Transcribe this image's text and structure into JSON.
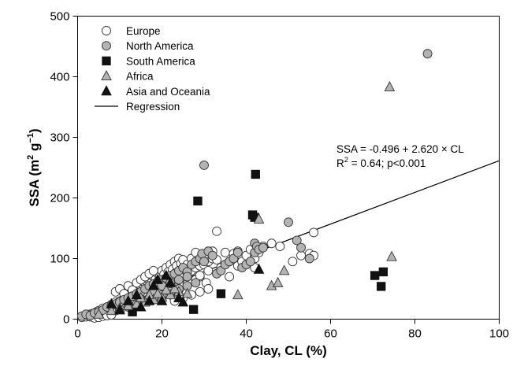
{
  "chart_data": {
    "type": "scatter",
    "xlabel": "Clay, CL (%)",
    "ylabel_main": "SSA (m",
    "ylabel_sup1": "2",
    "ylabel_mid": " g",
    "ylabel_sup2": "−1",
    "ylabel_end": ")",
    "xlim": [
      0,
      100
    ],
    "ylim": [
      0,
      500
    ],
    "xticks": [
      0,
      20,
      40,
      60,
      80,
      100
    ],
    "yticks": [
      0,
      100,
      200,
      300,
      400,
      500
    ],
    "xtick_labels": [
      "0",
      "20",
      "40",
      "60",
      "80",
      "100"
    ],
    "ytick_labels": [
      "0",
      "100",
      "200",
      "300",
      "400",
      "500"
    ],
    "grid": false,
    "legend_position": "top-left",
    "annotation": {
      "equation": "SSA = -0.496 + 2.620 × CL",
      "r2_prefix": "R",
      "r2_sup": "2",
      "r2_suffix": " = 0.64; p<0.001"
    },
    "regression": {
      "name": "Regression",
      "intercept": -0.496,
      "slope": 2.62,
      "x_range": [
        0,
        100
      ],
      "color": "#000000"
    },
    "series": [
      {
        "name": "Europe",
        "marker": "circle",
        "fill": "#ffffff",
        "stroke": "#333333",
        "points": [
          [
            1,
            3
          ],
          [
            1.5,
            5
          ],
          [
            2,
            4
          ],
          [
            2.5,
            6
          ],
          [
            3,
            8
          ],
          [
            3,
            4
          ],
          [
            3.5,
            9
          ],
          [
            4,
            10
          ],
          [
            4,
            6
          ],
          [
            4.5,
            12
          ],
          [
            5,
            8
          ],
          [
            5,
            14
          ],
          [
            5.5,
            11
          ],
          [
            6,
            12
          ],
          [
            6,
            18
          ],
          [
            6.5,
            15
          ],
          [
            7,
            14
          ],
          [
            7,
            20
          ],
          [
            7.5,
            18
          ],
          [
            8,
            16
          ],
          [
            8,
            24
          ],
          [
            8.5,
            22
          ],
          [
            9,
            20
          ],
          [
            9,
            28
          ],
          [
            9.5,
            25
          ],
          [
            10,
            22
          ],
          [
            10,
            30
          ],
          [
            10.5,
            28
          ],
          [
            11,
            26
          ],
          [
            11,
            35
          ],
          [
            11.5,
            32
          ],
          [
            12,
            30
          ],
          [
            12,
            40
          ],
          [
            12.5,
            36
          ],
          [
            13,
            34
          ],
          [
            13,
            45
          ],
          [
            13.5,
            40
          ],
          [
            14,
            38
          ],
          [
            14,
            50
          ],
          [
            14.5,
            45
          ],
          [
            15,
            42
          ],
          [
            15,
            55
          ],
          [
            15.5,
            50
          ],
          [
            16,
            45
          ],
          [
            16,
            60
          ],
          [
            16.5,
            55
          ],
          [
            17,
            48
          ],
          [
            17,
            65
          ],
          [
            17.5,
            60
          ],
          [
            18,
            52
          ],
          [
            18,
            70
          ],
          [
            18.5,
            66
          ],
          [
            19,
            55
          ],
          [
            19,
            75
          ],
          [
            19.5,
            70
          ],
          [
            20,
            58
          ],
          [
            20,
            80
          ],
          [
            20.5,
            74
          ],
          [
            21,
            60
          ],
          [
            21,
            85
          ],
          [
            21.5,
            78
          ],
          [
            22,
            62
          ],
          [
            22,
            90
          ],
          [
            22.5,
            82
          ],
          [
            23,
            65
          ],
          [
            23,
            95
          ],
          [
            23.5,
            88
          ],
          [
            24,
            68
          ],
          [
            24,
            100
          ],
          [
            24.5,
            92
          ],
          [
            25,
            70
          ],
          [
            25,
            98
          ],
          [
            26,
            75
          ],
          [
            26,
            90
          ],
          [
            27,
            80
          ],
          [
            27,
            100
          ],
          [
            28,
            85
          ],
          [
            28,
            110
          ],
          [
            28.5,
            95
          ],
          [
            29,
            88
          ],
          [
            29,
            70
          ],
          [
            30,
            90
          ],
          [
            30,
            105
          ],
          [
            30.5,
            60
          ],
          [
            31,
            95
          ],
          [
            31,
            80
          ],
          [
            32,
            100
          ],
          [
            32,
            112
          ],
          [
            33,
            145
          ],
          [
            33,
            98
          ],
          [
            34,
            85
          ],
          [
            35,
            90
          ],
          [
            35,
            110
          ],
          [
            36,
            70
          ],
          [
            36,
            95
          ],
          [
            37,
            100
          ],
          [
            37,
            108
          ],
          [
            38,
            88
          ],
          [
            38,
            112
          ],
          [
            39,
            95
          ],
          [
            40,
            105
          ],
          [
            40,
            90
          ],
          [
            41,
            115
          ],
          [
            42,
            100
          ],
          [
            42,
            85
          ],
          [
            43,
            110
          ],
          [
            44,
            120
          ],
          [
            46,
            125
          ],
          [
            48,
            120
          ],
          [
            51,
            95
          ],
          [
            53,
            105
          ],
          [
            55,
            108
          ],
          [
            56,
            143
          ],
          [
            56,
            105
          ],
          [
            9,
            45
          ],
          [
            10,
            50
          ],
          [
            11,
            42
          ],
          [
            12,
            55
          ],
          [
            13,
            48
          ],
          [
            14,
            60
          ],
          [
            15,
            65
          ],
          [
            16,
            70
          ],
          [
            17,
            75
          ],
          [
            18,
            80
          ],
          [
            20,
            50
          ],
          [
            21,
            45
          ],
          [
            22,
            40
          ],
          [
            23,
            52
          ],
          [
            24,
            48
          ],
          [
            25,
            55
          ],
          [
            26,
            58
          ],
          [
            27,
            62
          ],
          [
            28,
            65
          ],
          [
            29,
            72
          ],
          [
            6,
            8
          ],
          [
            7,
            10
          ],
          [
            8,
            12
          ],
          [
            9,
            14
          ],
          [
            10,
            16
          ],
          [
            4,
            2
          ],
          [
            5,
            3
          ],
          [
            6,
            5
          ],
          [
            7,
            6
          ],
          [
            8,
            7
          ],
          [
            13,
            25
          ],
          [
            15,
            30
          ],
          [
            17,
            35
          ],
          [
            19,
            38
          ],
          [
            21,
            42
          ],
          [
            23,
            30
          ],
          [
            25,
            35
          ],
          [
            27,
            40
          ],
          [
            29,
            45
          ],
          [
            31,
            50
          ]
        ]
      },
      {
        "name": "North America",
        "marker": "circle",
        "fill": "#b3b3b3",
        "stroke": "#333333",
        "points": [
          [
            1,
            5
          ],
          [
            2,
            8
          ],
          [
            3,
            6
          ],
          [
            4,
            10
          ],
          [
            5,
            12
          ],
          [
            6,
            15
          ],
          [
            7,
            20
          ],
          [
            8,
            22
          ],
          [
            9,
            25
          ],
          [
            10,
            28
          ],
          [
            11,
            32
          ],
          [
            12,
            35
          ],
          [
            13,
            38
          ],
          [
            14,
            42
          ],
          [
            15,
            45
          ],
          [
            16,
            50
          ],
          [
            17,
            55
          ],
          [
            18,
            58
          ],
          [
            19,
            62
          ],
          [
            20,
            65
          ],
          [
            21,
            68
          ],
          [
            22,
            72
          ],
          [
            23,
            75
          ],
          [
            24,
            80
          ],
          [
            25,
            85
          ],
          [
            26,
            78
          ],
          [
            27,
            90
          ],
          [
            28,
            95
          ],
          [
            29,
            100
          ],
          [
            29.5,
            108
          ],
          [
            30,
            95
          ],
          [
            30,
            254
          ],
          [
            31,
            112
          ],
          [
            32,
            105
          ],
          [
            33,
            75
          ],
          [
            34,
            80
          ],
          [
            35,
            90
          ],
          [
            36,
            95
          ],
          [
            37,
            100
          ],
          [
            38,
            110
          ],
          [
            39,
            85
          ],
          [
            40,
            90
          ],
          [
            41,
            95
          ],
          [
            42,
            110
          ],
          [
            42,
            125
          ],
          [
            42.5,
            120
          ],
          [
            43,
            115
          ],
          [
            44,
            118
          ],
          [
            50,
            160
          ],
          [
            52,
            130
          ],
          [
            53,
            118
          ],
          [
            55,
            100
          ],
          [
            83,
            438
          ],
          [
            12,
            20
          ],
          [
            14,
            25
          ],
          [
            16,
            30
          ],
          [
            18,
            35
          ],
          [
            20,
            40
          ],
          [
            22,
            45
          ],
          [
            24,
            50
          ],
          [
            26,
            55
          ],
          [
            28,
            60
          ],
          [
            18,
            45
          ],
          [
            20,
            55
          ],
          [
            22,
            60
          ],
          [
            24,
            65
          ],
          [
            26,
            70
          ]
        ]
      },
      {
        "name": "South America",
        "marker": "square",
        "fill": "#111111",
        "stroke": "#111111",
        "points": [
          [
            13,
            12
          ],
          [
            27.5,
            16
          ],
          [
            28.5,
            195
          ],
          [
            34,
            42
          ],
          [
            41.5,
            172
          ],
          [
            42,
            168
          ],
          [
            42.2,
            239
          ],
          [
            70.5,
            72
          ],
          [
            72,
            54
          ],
          [
            72.5,
            78
          ]
        ]
      },
      {
        "name": "Africa",
        "marker": "triangle",
        "fill": "#b3b3b3",
        "stroke": "#333333",
        "points": [
          [
            5,
            8
          ],
          [
            8,
            14
          ],
          [
            10,
            18
          ],
          [
            12,
            22
          ],
          [
            14,
            25
          ],
          [
            16,
            28
          ],
          [
            18,
            32
          ],
          [
            20,
            36
          ],
          [
            22,
            40
          ],
          [
            24,
            45
          ],
          [
            26,
            42
          ],
          [
            38,
            40
          ],
          [
            43,
            165
          ],
          [
            46,
            55
          ],
          [
            47.5,
            60
          ],
          [
            49,
            80
          ],
          [
            74,
            383
          ],
          [
            74.5,
            103
          ],
          [
            15,
            35
          ],
          [
            17,
            40
          ],
          [
            19,
            42
          ],
          [
            21,
            48
          ],
          [
            23,
            50
          ]
        ]
      },
      {
        "name": "Asia and Oceania",
        "marker": "triangle",
        "fill": "#111111",
        "stroke": "#111111",
        "points": [
          [
            8,
            25
          ],
          [
            10,
            15
          ],
          [
            12,
            30
          ],
          [
            14,
            40
          ],
          [
            15,
            20
          ],
          [
            17,
            30
          ],
          [
            18,
            55
          ],
          [
            19,
            65
          ],
          [
            20,
            30
          ],
          [
            21,
            72
          ],
          [
            22,
            60
          ],
          [
            24,
            35
          ],
          [
            25,
            28
          ],
          [
            43,
            82
          ]
        ]
      }
    ]
  }
}
